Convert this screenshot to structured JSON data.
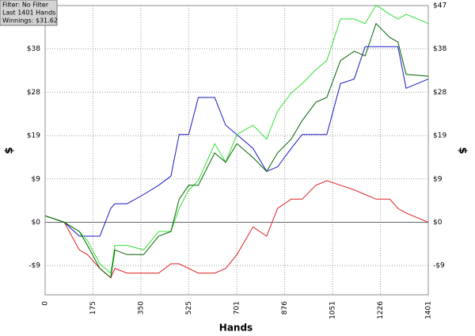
{
  "chart_data": {
    "type": "line",
    "info": [
      "Filter: No Filter",
      "Last  1401 Hands",
      "Winnings: $31.62"
    ],
    "ylabel": "$",
    "xlabel": "Hands",
    "x": [
      0,
      70,
      125,
      155,
      200,
      240,
      255,
      300,
      360,
      415,
      460,
      490,
      525,
      560,
      620,
      660,
      701,
      760,
      810,
      850,
      900,
      940,
      990,
      1030,
      1080,
      1130,
      1170,
      1210,
      1260,
      1290,
      1320,
      1401
    ],
    "series": [
      {
        "color": "#1515c8",
        "values": [
          1.4,
          0,
          -3,
          -3,
          -3,
          3,
          4,
          4,
          6,
          8,
          10,
          19,
          19,
          27,
          27,
          21,
          19,
          16,
          11,
          12,
          16,
          19,
          19,
          19,
          30,
          31,
          38,
          38,
          38,
          38,
          29,
          31
        ]
      },
      {
        "color": "#e02020",
        "values": [
          1.4,
          0,
          -6,
          -7,
          -10,
          -12,
          -10,
          -11,
          -11,
          -11,
          -9,
          -9,
          -10,
          -11,
          -11,
          -10,
          -7,
          -1,
          -3,
          3,
          5,
          5,
          8,
          9,
          8,
          7,
          6,
          5,
          5,
          3,
          2,
          0
        ]
      },
      {
        "color": "#33e033",
        "values": [
          1.4,
          0,
          -2,
          -4,
          -9,
          -11,
          -5,
          -5,
          -6,
          -2,
          -2,
          3,
          7,
          9,
          17,
          13,
          19,
          21,
          18,
          24,
          28,
          30,
          33,
          35,
          44,
          44,
          43,
          47,
          45,
          44,
          45,
          43
        ]
      },
      {
        "color": "#006400",
        "values": [
          1.4,
          0,
          -2,
          -5,
          -10,
          -12,
          -6,
          -7,
          -7,
          -3,
          -2,
          5,
          8,
          8,
          15,
          13,
          17,
          14,
          11,
          15,
          18,
          22,
          26,
          27,
          35,
          37,
          36,
          43,
          40,
          39,
          32,
          31.62
        ]
      }
    ],
    "xlim": [
      0,
      1401
    ],
    "xticks": [
      0,
      175,
      350,
      525,
      701,
      876,
      1051,
      1226,
      1401
    ],
    "ylim": [
      -15.7,
      46.9
    ],
    "yticks": [
      {
        "value": -9.38,
        "label": "-$9"
      },
      {
        "value": 0,
        "label": "$0"
      },
      {
        "value": 9.38,
        "label": "$9"
      },
      {
        "value": 18.76,
        "label": "$19"
      },
      {
        "value": 28.14,
        "label": "$28"
      },
      {
        "value": 37.52,
        "label": "$38"
      },
      {
        "value": 46.9,
        "label": "$47"
      }
    ],
    "zero_line": 0,
    "grid": true
  }
}
